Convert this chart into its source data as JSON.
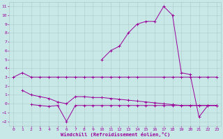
{
  "xlabel": "Windchill (Refroidissement éolien,°C)",
  "bg_color": "#c8e8e8",
  "grid_color": "#b0c8c8",
  "line_color": "#990099",
  "ylim": [
    -2.5,
    11.5
  ],
  "yticks": [
    -2,
    -1,
    0,
    1,
    2,
    3,
    4,
    5,
    6,
    7,
    8,
    9,
    10,
    11
  ],
  "xticks": [
    0,
    1,
    2,
    3,
    4,
    5,
    6,
    7,
    8,
    9,
    10,
    11,
    12,
    13,
    14,
    15,
    16,
    17,
    18,
    19,
    20,
    21,
    22,
    23
  ],
  "upper_x": [
    0,
    1,
    2,
    3,
    4,
    5,
    6,
    7,
    8,
    9,
    10,
    11,
    12,
    13,
    14,
    17,
    18,
    19,
    20,
    21,
    22,
    23
  ],
  "upper_y": [
    3,
    3.5,
    3,
    3,
    3,
    3,
    3,
    3,
    3,
    3,
    3,
    3,
    3,
    3,
    3,
    3,
    3,
    3,
    3,
    3,
    3,
    3
  ],
  "middle_x": [
    1,
    2,
    3,
    4,
    5,
    6,
    7,
    8,
    9,
    10,
    11,
    12,
    13,
    14,
    15,
    16,
    17,
    18,
    19,
    20,
    21,
    22,
    23
  ],
  "middle_y": [
    1.5,
    1.0,
    0.8,
    0.6,
    0.2,
    0.0,
    0.8,
    0.8,
    0.7,
    0.7,
    0.6,
    0.5,
    0.4,
    0.3,
    0.2,
    0.1,
    0.0,
    -0.1,
    -0.2,
    -0.2,
    -0.2,
    -0.2,
    -0.2
  ],
  "lower_x": [
    2,
    3,
    4,
    5,
    6,
    7,
    8,
    9,
    10,
    11,
    12,
    13,
    14,
    15,
    16,
    17,
    18,
    19,
    20,
    21,
    22,
    23
  ],
  "lower_y": [
    -0.1,
    -0.2,
    -0.3,
    -0.2,
    -2.0,
    -0.2,
    -0.2,
    -0.2,
    -0.2,
    -0.2,
    -0.2,
    -0.2,
    -0.2,
    -0.2,
    -0.2,
    -0.2,
    -0.2,
    -0.2,
    -0.2,
    -0.2,
    -0.2,
    -0.2
  ],
  "main_x": [
    10,
    11,
    12,
    13,
    14,
    15,
    16,
    17,
    18,
    19,
    20,
    21,
    22,
    23
  ],
  "main_y": [
    5.0,
    6.0,
    6.5,
    8.0,
    9.0,
    9.3,
    9.3,
    11.0,
    10.0,
    3.5,
    3.3,
    -1.5,
    -0.2,
    -0.2
  ]
}
